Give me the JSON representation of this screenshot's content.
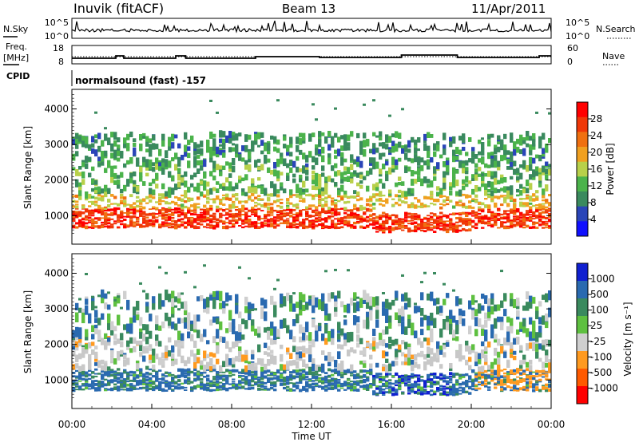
{
  "header": {
    "station": "Inuvik (fitACF)",
    "beam": "Beam 13",
    "date": "11/Apr/2011"
  },
  "noise_panel": {
    "left_label": "N.Sky",
    "left_ticks": [
      "10^5",
      "10^0"
    ],
    "right_ticks": [
      "10^5",
      "10^0"
    ],
    "right_label": "N.Search"
  },
  "freq_panel": {
    "left_label_1": "Freq.",
    "left_label_2": "[MHz]",
    "left_ticks": [
      "18",
      "8"
    ],
    "right_ticks": [
      "60",
      "0"
    ],
    "right_label": "Nave"
  },
  "cpid": {
    "label": "CPID",
    "value": "normalsound (fast) -157"
  },
  "colors": {
    "power_scale": [
      "#1010ff",
      "#2a45b8",
      "#3a8a5e",
      "#4bb34b",
      "#b8d04a",
      "#f0a020",
      "#f07010",
      "#f03808",
      "#ff0000"
    ],
    "velocity_scale": [
      "#ff0000",
      "#ff5a00",
      "#ff9a20",
      "#cfcfcf",
      "#5ec040",
      "#3a8a5e",
      "#2a6ab0",
      "#1020d0"
    ],
    "ground_scatter": "#c8c8c8"
  },
  "chart_data": [
    {
      "type": "heatmap",
      "name": "power",
      "ylabel": "Slant Range [km]",
      "ylim": [
        200,
        4550
      ],
      "yticks": [
        "4000",
        "3000",
        "2000",
        "1000"
      ],
      "xlim_hours": [
        0,
        24
      ],
      "colorbar": {
        "label": "Power [dB]",
        "ticks": [
          "28",
          "24",
          "20",
          "16",
          "12",
          "8",
          "4"
        ],
        "range": [
          0,
          32
        ]
      },
      "bands": [
        {
          "range_km": [
            650,
            1200
          ],
          "value_db": 27
        },
        {
          "range_km": [
            1200,
            1600
          ],
          "value_db": 18
        },
        {
          "range_km": [
            1600,
            2400
          ],
          "value_db": 12
        },
        {
          "range_km": [
            2400,
            3300
          ],
          "value_db": 10
        }
      ]
    },
    {
      "type": "heatmap",
      "name": "velocity",
      "ylabel": "Slant Range [km]",
      "ylim": [
        200,
        4550
      ],
      "yticks": [
        "4000",
        "3000",
        "2000",
        "1000"
      ],
      "xlabel": "Time UT",
      "xticks": [
        "00:00",
        "04:00",
        "08:00",
        "12:00",
        "16:00",
        "20:00",
        "00:00"
      ],
      "xlim_hours": [
        0,
        24
      ],
      "colorbar": {
        "label": "Velocity [m s⁻¹]",
        "ticks": [
          "1000",
          "500",
          "100",
          "25",
          "-25",
          "-100",
          "-500",
          "-1000"
        ]
      },
      "bands": [
        {
          "range_km": [
            700,
            1300
          ],
          "value_ms": 150
        },
        {
          "range_km": [
            1300,
            2200
          ],
          "value_ms": 0
        },
        {
          "range_km": [
            2200,
            3400
          ],
          "value_ms": 60
        }
      ]
    }
  ]
}
